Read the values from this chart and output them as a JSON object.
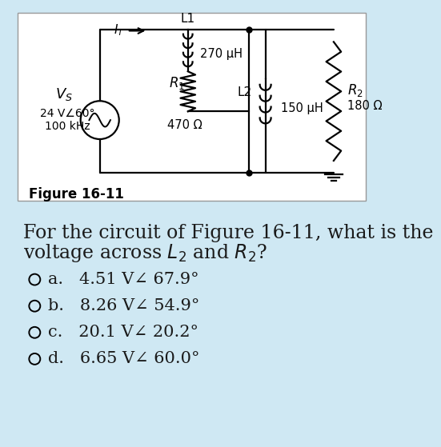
{
  "background_color": "#cfe8f3",
  "circuit_box_bg": "#ffffff",
  "title_text": "Figure 16-11",
  "question_line1": "For the circuit of Figure 16-11, what is the",
  "question_line2": "voltage across $L_2$ and $R_2$?",
  "options": [
    {
      "label": "a.",
      "text": "4.51 V∠ 67.9°"
    },
    {
      "label": "b.",
      "text": "8.26 V∠ 54.9°"
    },
    {
      "label": "c.",
      "text": "20.1 V∠ 20.2°"
    },
    {
      "label": "d.",
      "text": "6.65 V∠ 60.0°"
    }
  ],
  "font_size_question": 17,
  "font_size_options": 15,
  "text_color": "#1a1a1a",
  "vs_label": "$V_S$",
  "vs_value": "24 V∠60°",
  "vs_freq": "100 kHz",
  "l1_label": "L1",
  "l1_value": "270 μH",
  "r1_label": "$R_1$",
  "r1_value": "470 Ω",
  "l2_label": "L2",
  "l2_value": "150 μH",
  "r2_label": "$R_2$",
  "r2_value": "180 Ω",
  "it_label": "$I_T$"
}
